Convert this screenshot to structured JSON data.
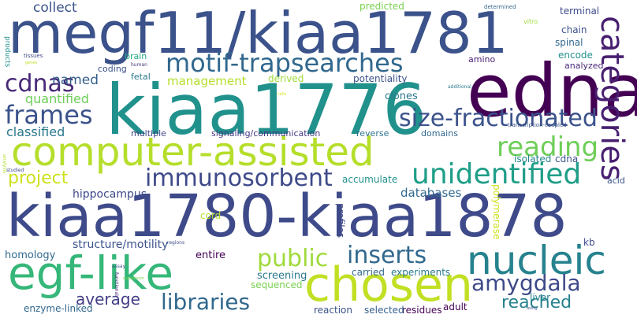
{
  "words": [
    {
      "text": "megf11/kiaa1781",
      "color": "#3b528b"
    },
    {
      "text": "kiaa1776",
      "color": "#21918c"
    },
    {
      "text": "edna",
      "color": "#440154"
    },
    {
      "text": "computer-assisted",
      "color": "#b5de2b"
    },
    {
      "text": "kiaa1780-kiaa1878",
      "color": "#3e4a89"
    },
    {
      "text": "egf-like",
      "color": "#35b779"
    },
    {
      "text": "chosen",
      "color": "#c2df23"
    },
    {
      "text": "nucleic",
      "color": "#26828e"
    },
    {
      "text": "motif-trapsearches",
      "color": "#31688e"
    },
    {
      "text": "categories",
      "color": "#481f70"
    },
    {
      "text": "size-fractionated",
      "color": "#3b528b"
    },
    {
      "text": "unidentified",
      "color": "#1f9e89"
    },
    {
      "text": "reading",
      "color": "#6ece58"
    },
    {
      "text": "immunosorbent",
      "color": "#3e4a89"
    },
    {
      "text": "frames",
      "color": "#3b528b"
    },
    {
      "text": "cdnas",
      "color": "#482878"
    },
    {
      "text": "public",
      "color": "#9fda3a"
    },
    {
      "text": "inserts",
      "color": "#31688e"
    },
    {
      "text": "amygdala",
      "color": "#3e4a89"
    },
    {
      "text": "libraries",
      "color": "#31688e"
    },
    {
      "text": "reached",
      "color": "#26828e"
    },
    {
      "text": "average",
      "color": "#433e85"
    },
    {
      "text": "project",
      "color": "#cde11d"
    },
    {
      "text": "collect",
      "color": "#3b528b"
    },
    {
      "text": "named",
      "color": "#355f8d"
    },
    {
      "text": "quantified",
      "color": "#6ece58"
    },
    {
      "text": "classified",
      "color": "#2a788e"
    },
    {
      "text": "management",
      "color": "#b5de2b"
    },
    {
      "text": "hippocampus",
      "color": "#3e4a89"
    },
    {
      "text": "databases",
      "color": "#31688e"
    },
    {
      "text": "structure/motility",
      "color": "#3b528b"
    },
    {
      "text": "homology",
      "color": "#31688e"
    },
    {
      "text": "entire",
      "color": "#440154"
    },
    {
      "text": "screening",
      "color": "#2a788e"
    },
    {
      "text": "clones",
      "color": "#2a788e"
    },
    {
      "text": "predicted",
      "color": "#7ad151"
    },
    {
      "text": "terminal",
      "color": "#3e4a89"
    },
    {
      "text": "chain",
      "color": "#3b528b"
    },
    {
      "text": "spinal",
      "color": "#31688e"
    },
    {
      "text": "encode",
      "color": "#21918c"
    },
    {
      "text": "analyzed",
      "color": "#482878"
    },
    {
      "text": "amino",
      "color": "#481f70"
    },
    {
      "text": "potentiality",
      "color": "#3b528b"
    },
    {
      "text": "derived",
      "color": "#a0da39"
    },
    {
      "text": "fetal",
      "color": "#2a788e"
    },
    {
      "text": "coding",
      "color": "#3b528b"
    },
    {
      "text": "brain",
      "color": "#22a884"
    },
    {
      "text": "determined",
      "color": "#31688e"
    },
    {
      "text": "vitro",
      "color": "#a0da39"
    },
    {
      "text": "products",
      "color": "#21918c"
    },
    {
      "text": "tissues",
      "color": "#3e4a89"
    },
    {
      "text": "human",
      "color": "#46337e"
    },
    {
      "text": "additional",
      "color": "#2a788e"
    },
    {
      "text": "transcription-coupled",
      "color": "#3b528b"
    },
    {
      "text": "multiple",
      "color": "#414487"
    },
    {
      "text": "signaling/communication",
      "color": "#443983"
    },
    {
      "text": "reverse",
      "color": "#2c728e"
    },
    {
      "text": "domains",
      "color": "#31688e"
    },
    {
      "text": "isolated",
      "color": "#26828e"
    },
    {
      "text": "cdna",
      "color": "#3b528b"
    },
    {
      "text": "accumulate",
      "color": "#21918c"
    },
    {
      "text": "acid",
      "color": "#3b528b"
    },
    {
      "text": "cord",
      "color": "#b5de2b"
    },
    {
      "text": "profiles",
      "color": "#3e4a89"
    },
    {
      "text": "polymerase",
      "color": "#cde11d"
    },
    {
      "text": "kb",
      "color": "#3e4a89"
    },
    {
      "text": "carried",
      "color": "#31688e"
    },
    {
      "text": "experiments",
      "color": "#2a788e"
    },
    {
      "text": "sequenced",
      "color": "#7ad151"
    },
    {
      "text": "liver",
      "color": "#26828e"
    },
    {
      "text": "adult",
      "color": "#440154"
    },
    {
      "text": "residues",
      "color": "#440154"
    },
    {
      "text": "selected",
      "color": "#355f8d"
    },
    {
      "text": "reaction",
      "color": "#3b528b"
    },
    {
      "text": "enzyme-linked",
      "color": "#31688e"
    },
    {
      "text": "regions",
      "color": "#3e4a89"
    },
    {
      "text": "assay",
      "color": "#3b528b"
    },
    {
      "text": "functional",
      "color": "#482878"
    },
    {
      "text": "studied",
      "color": "#3e4a89"
    },
    {
      "text": "analysis",
      "color": "#b5de2b"
    },
    {
      "text": "expression",
      "color": "#7ad151"
    },
    {
      "text": "genes",
      "color": "#c2df23"
    },
    {
      "text": "cells",
      "color": "#dde318"
    },
    {
      "text": "using",
      "color": "#3b528b"
    }
  ]
}
